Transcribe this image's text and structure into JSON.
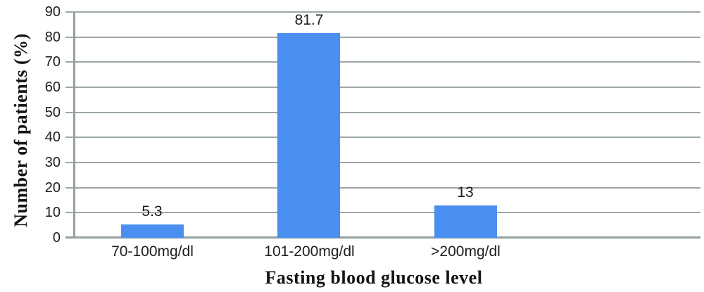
{
  "chart_data": {
    "type": "bar",
    "title": "",
    "categories": [
      "70-100mg/dl",
      "101-200mg/dl",
      ">200mg/dl"
    ],
    "values": [
      5.3,
      81.7,
      13
    ],
    "value_labels": [
      "5.3",
      "81.7",
      "13"
    ],
    "xlabel": "Fasting blood glucose level",
    "ylabel": "Number of patients (%)",
    "ylim": [
      0,
      90
    ],
    "y_ticks": [
      0,
      10,
      20,
      30,
      40,
      50,
      60,
      70,
      80,
      90
    ],
    "grid": true,
    "legend": false,
    "num_category_slots": 4,
    "colors": {
      "bar": "#4a8ff0",
      "gridline": "#9da7a8",
      "axis_line": "#95a0a1",
      "text": "#1d1d1d"
    }
  }
}
